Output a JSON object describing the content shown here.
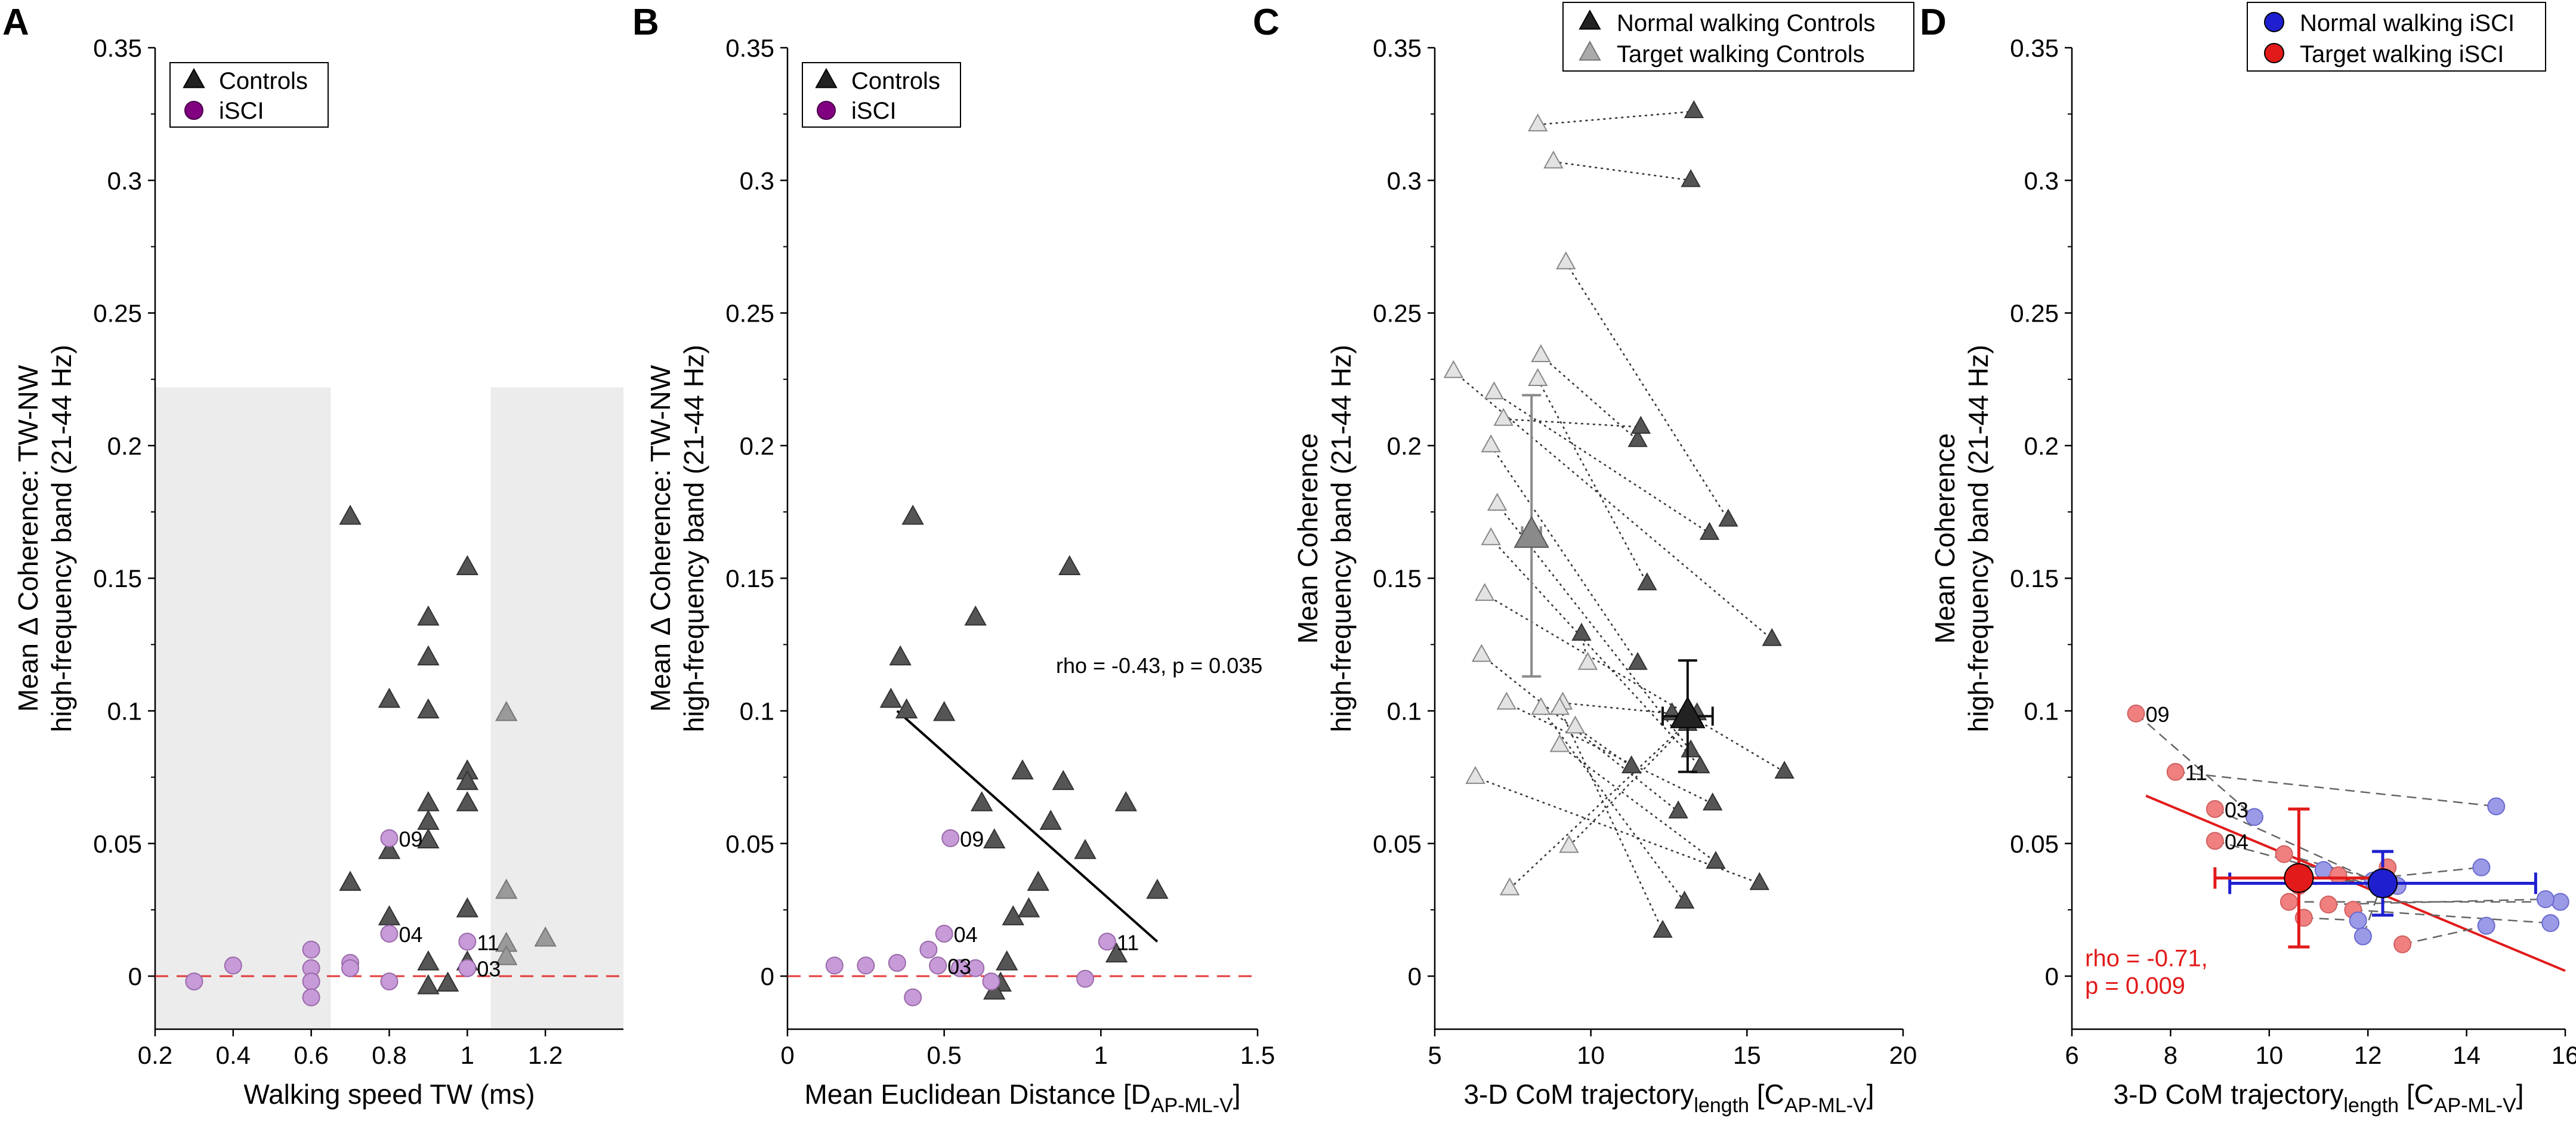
{
  "colors": {
    "dark_triangle": "#555555",
    "light_triangle": "#cfcfcf",
    "isci": "#c79ad8",
    "isci_stroke": "#9a6aaa",
    "isci_legend": "#800080",
    "blue": "#1f1fd0",
    "blue_point": "#9a9ae6",
    "red": "#e21a1a",
    "red_point": "#f08080",
    "shade": "#ececec"
  },
  "chart_data": [
    {
      "panel_label": "A",
      "type": "scatter",
      "xlabel": "Walking speed TW (ms)",
      "ylabel": [
        "Mean Δ Coherence: TW-NW",
        "high-frequency band (21-44 Hz)"
      ],
      "xlim": [
        0.2,
        1.4
      ],
      "ylim": [
        -0.02,
        0.35
      ],
      "xticks": [
        0.2,
        0.4,
        0.6,
        0.8,
        1,
        1.2
      ],
      "yticks": [
        0,
        0.05,
        0.1,
        0.15,
        0.2,
        0.25,
        0.3,
        0.35
      ],
      "legend": [
        "Controls",
        "iSCI"
      ],
      "shaded_regions": [
        {
          "x": [
            0.2,
            0.65
          ],
          "y": [
            -0.02,
            0.222
          ]
        },
        {
          "x": [
            1.06,
            1.4
          ],
          "y": [
            -0.02,
            0.222
          ]
        }
      ],
      "reference_line": 0,
      "controls": [
        {
          "x": 0.7,
          "y": 0.173
        },
        {
          "x": 0.7,
          "y": 0.035
        },
        {
          "x": 0.8,
          "y": 0.104
        },
        {
          "x": 0.8,
          "y": 0.047
        },
        {
          "x": 0.8,
          "y": 0.022
        },
        {
          "x": 0.9,
          "y": 0.135
        },
        {
          "x": 0.9,
          "y": 0.12
        },
        {
          "x": 0.9,
          "y": 0.1
        },
        {
          "x": 0.9,
          "y": 0.065
        },
        {
          "x": 0.9,
          "y": 0.058
        },
        {
          "x": 0.9,
          "y": 0.051
        },
        {
          "x": 0.9,
          "y": 0.005
        },
        {
          "x": 0.9,
          "y": -0.004
        },
        {
          "x": 0.95,
          "y": -0.003
        },
        {
          "x": 1.0,
          "y": 0.154
        },
        {
          "x": 1.0,
          "y": 0.077
        },
        {
          "x": 1.0,
          "y": 0.073
        },
        {
          "x": 1.0,
          "y": 0.065
        },
        {
          "x": 1.0,
          "y": 0.025
        },
        {
          "x": 1.0,
          "y": 0.005
        }
      ],
      "controls_light": [
        {
          "x": 1.1,
          "y": 0.099
        },
        {
          "x": 1.1,
          "y": 0.032
        },
        {
          "x": 1.1,
          "y": 0.012
        },
        {
          "x": 1.1,
          "y": 0.007
        },
        {
          "x": 1.2,
          "y": 0.014
        }
      ],
      "isci": [
        {
          "x": 0.3,
          "y": -0.002
        },
        {
          "x": 0.4,
          "y": 0.004
        },
        {
          "x": 0.6,
          "y": 0.01
        },
        {
          "x": 0.6,
          "y": 0.003
        },
        {
          "x": 0.6,
          "y": -0.002
        },
        {
          "x": 0.6,
          "y": -0.008
        },
        {
          "x": 0.7,
          "y": 0.005
        },
        {
          "x": 0.7,
          "y": 0.003
        },
        {
          "x": 0.8,
          "y": 0.052
        },
        {
          "x": 0.8,
          "y": 0.016
        },
        {
          "x": 0.8,
          "y": -0.002
        },
        {
          "x": 1.0,
          "y": 0.013
        },
        {
          "x": 1.0,
          "y": 0.003
        }
      ],
      "annotations": [
        {
          "text": "09",
          "x": 0.8,
          "y": 0.052
        },
        {
          "text": "04",
          "x": 0.8,
          "y": 0.016
        },
        {
          "text": "11",
          "x": 1.0,
          "y": 0.013
        },
        {
          "text": "03",
          "x": 1.0,
          "y": 0.003
        }
      ]
    },
    {
      "panel_label": "B",
      "type": "scatter",
      "xlabel": "Mean Euclidean Distance [D",
      "xlabel_sub": "AP-ML-V",
      "xlabel_end": "]",
      "ylabel": [
        "Mean Δ Coherence: TW-NW",
        "high-frequency band (21-44 Hz)"
      ],
      "xlim": [
        0,
        1.5
      ],
      "ylim": [
        -0.02,
        0.35
      ],
      "xticks": [
        0,
        0.5,
        1,
        1.5
      ],
      "yticks": [
        0,
        0.05,
        0.1,
        0.15,
        0.2,
        0.25,
        0.3,
        0.35
      ],
      "legend": [
        "Controls",
        "iSCI"
      ],
      "reference_line": 0,
      "regression": {
        "x": [
          0.35,
          1.18
        ],
        "y": [
          0.1,
          0.013
        ]
      },
      "stat_text": "rho = -0.43, p = 0.035",
      "controls": [
        {
          "x": 0.33,
          "y": 0.104
        },
        {
          "x": 0.36,
          "y": 0.12
        },
        {
          "x": 0.38,
          "y": 0.1
        },
        {
          "x": 0.4,
          "y": 0.173
        },
        {
          "x": 0.5,
          "y": 0.099
        },
        {
          "x": 0.6,
          "y": 0.135
        },
        {
          "x": 0.62,
          "y": 0.065
        },
        {
          "x": 0.66,
          "y": 0.051
        },
        {
          "x": 0.68,
          "y": -0.003
        },
        {
          "x": 0.7,
          "y": 0.005
        },
        {
          "x": 0.72,
          "y": 0.022
        },
        {
          "x": 0.75,
          "y": 0.077
        },
        {
          "x": 0.77,
          "y": 0.025
        },
        {
          "x": 0.8,
          "y": 0.035
        },
        {
          "x": 0.84,
          "y": 0.058
        },
        {
          "x": 0.88,
          "y": 0.073
        },
        {
          "x": 0.9,
          "y": 0.154
        },
        {
          "x": 0.95,
          "y": 0.047
        },
        {
          "x": 1.05,
          "y": 0.008
        },
        {
          "x": 1.08,
          "y": 0.065
        },
        {
          "x": 1.18,
          "y": 0.032
        },
        {
          "x": 0.66,
          "y": -0.006
        }
      ],
      "isci": [
        {
          "x": 0.15,
          "y": 0.004
        },
        {
          "x": 0.25,
          "y": 0.004
        },
        {
          "x": 0.35,
          "y": 0.005
        },
        {
          "x": 0.4,
          "y": -0.008
        },
        {
          "x": 0.45,
          "y": 0.01
        },
        {
          "x": 0.48,
          "y": 0.004
        },
        {
          "x": 0.5,
          "y": 0.016
        },
        {
          "x": 0.52,
          "y": 0.052
        },
        {
          "x": 0.55,
          "y": 0.003
        },
        {
          "x": 0.6,
          "y": 0.003
        },
        {
          "x": 0.65,
          "y": -0.002
        },
        {
          "x": 0.95,
          "y": -0.001
        },
        {
          "x": 1.02,
          "y": 0.013
        }
      ],
      "annotations": [
        {
          "text": "09",
          "x": 0.52,
          "y": 0.052
        },
        {
          "text": "04",
          "x": 0.5,
          "y": 0.016
        },
        {
          "text": "03",
          "x": 0.48,
          "y": 0.004
        },
        {
          "text": "11",
          "x": 1.02,
          "y": 0.013
        }
      ]
    },
    {
      "panel_label": "C",
      "type": "scatter",
      "xlabel": "3-D CoM trajectory",
      "xlabel_sub1": "length",
      "xlabel_mid": " [C",
      "xlabel_sub2": "AP-ML-V",
      "xlabel_end": "]",
      "ylabel": [
        "Mean Coherence",
        "high-frequency band (21-44 Hz)"
      ],
      "xlim": [
        5,
        20
      ],
      "ylim": [
        -0.02,
        0.35
      ],
      "xticks": [
        5,
        10,
        15,
        20
      ],
      "yticks": [
        0,
        0.05,
        0.1,
        0.15,
        0.2,
        0.25,
        0.3,
        0.35
      ],
      "legend": [
        "Normal walking Controls",
        "Target walking Controls"
      ],
      "pairs": [
        {
          "normal": [
            13.3,
            0.326
          ],
          "target": [
            8.3,
            0.321
          ]
        },
        {
          "normal": [
            13.2,
            0.3
          ],
          "target": [
            8.8,
            0.307
          ]
        },
        {
          "normal": [
            14.4,
            0.172
          ],
          "target": [
            9.2,
            0.269
          ]
        },
        {
          "normal": [
            11.5,
            0.202
          ],
          "target": [
            8.4,
            0.234
          ]
        },
        {
          "normal": [
            11.8,
            0.148
          ],
          "target": [
            8.3,
            0.225
          ]
        },
        {
          "normal": [
            15.8,
            0.127
          ],
          "target": [
            5.6,
            0.228
          ]
        },
        {
          "normal": [
            11.6,
            0.207
          ],
          "target": [
            7.2,
            0.21
          ]
        },
        {
          "normal": [
            13.8,
            0.167
          ],
          "target": [
            6.9,
            0.22
          ]
        },
        {
          "normal": [
            11.5,
            0.118
          ],
          "target": [
            6.8,
            0.2
          ]
        },
        {
          "normal": [
            13.2,
            0.085
          ],
          "target": [
            7.0,
            0.178
          ]
        },
        {
          "normal": [
            13.5,
            0.079
          ],
          "target": [
            6.8,
            0.165
          ]
        },
        {
          "normal": [
            16.2,
            0.077
          ],
          "target": [
            6.6,
            0.144
          ]
        },
        {
          "normal": [
            12.6,
            0.099
          ],
          "target": [
            9.1,
            0.103
          ]
        },
        {
          "normal": [
            13.9,
            0.065
          ],
          "target": [
            7.3,
            0.103
          ]
        },
        {
          "normal": [
            12.8,
            0.062
          ],
          "target": [
            6.5,
            0.121
          ]
        },
        {
          "normal": [
            11.3,
            0.079
          ],
          "target": [
            9.5,
            0.094
          ]
        },
        {
          "normal": [
            14.0,
            0.043
          ],
          "target": [
            9.0,
            0.087
          ]
        },
        {
          "normal": [
            13.0,
            0.028
          ],
          "target": [
            8.4,
            0.101
          ]
        },
        {
          "normal": [
            12.3,
            0.017
          ],
          "target": [
            9.0,
            0.101
          ]
        },
        {
          "normal": [
            15.4,
            0.035
          ],
          "target": [
            6.3,
            0.075
          ]
        },
        {
          "normal": [
            13.1,
            0.095
          ],
          "target": [
            9.3,
            0.049
          ]
        },
        {
          "normal": [
            13.4,
            0.099
          ],
          "target": [
            7.4,
            0.033
          ]
        },
        {
          "normal": [
            9.7,
            0.129
          ],
          "target": [
            9.9,
            0.118
          ]
        }
      ],
      "mean_normal": {
        "x": 13.1,
        "y": 0.098,
        "xerr": 0.8,
        "yerr": 0.021
      },
      "mean_target": {
        "x": 8.1,
        "y": 0.166,
        "xerr": 0.3,
        "yerr": 0.053
      }
    },
    {
      "panel_label": "D",
      "type": "scatter",
      "xlabel": "3-D CoM trajectory",
      "xlabel_sub1": "length",
      "xlabel_mid": " [C",
      "xlabel_sub2": "AP-ML-V",
      "xlabel_end": "]",
      "ylabel": [
        "Mean Coherence",
        "high-frequency band (21-44 Hz)"
      ],
      "xlim": [
        6,
        16
      ],
      "ylim": [
        -0.02,
        0.35
      ],
      "xticks": [
        6,
        8,
        10,
        12,
        14,
        16
      ],
      "yticks": [
        0,
        0.05,
        0.1,
        0.15,
        0.2,
        0.25,
        0.3,
        0.35
      ],
      "legend": [
        "Normal walking iSCI",
        "Target walking iSCI"
      ],
      "pairs": [
        {
          "target": [
            7.3,
            0.099
          ],
          "normal": [
            9.7,
            0.06
          ]
        },
        {
          "target": [
            8.1,
            0.077
          ],
          "normal": [
            14.6,
            0.064
          ]
        },
        {
          "target": [
            8.9,
            0.063
          ],
          "normal": [
            12.1,
            0.036
          ]
        },
        {
          "target": [
            8.9,
            0.051
          ],
          "normal": [
            11.1,
            0.04
          ]
        },
        {
          "target": [
            10.3,
            0.046
          ],
          "normal": [
            12.6,
            0.034
          ]
        },
        {
          "target": [
            10.6,
            0.034
          ],
          "normal": [
            14.3,
            0.041
          ]
        },
        {
          "target": [
            10.4,
            0.028
          ],
          "normal": [
            15.9,
            0.028
          ]
        },
        {
          "target": [
            11.2,
            0.027
          ],
          "normal": [
            15.6,
            0.029
          ]
        },
        {
          "target": [
            11.7,
            0.025
          ],
          "normal": [
            15.7,
            0.02
          ]
        },
        {
          "target": [
            10.7,
            0.022
          ],
          "normal": [
            11.8,
            0.021
          ]
        },
        {
          "target": [
            12.7,
            0.012
          ],
          "normal": [
            14.4,
            0.019
          ]
        },
        {
          "target": [
            11.4,
            0.038
          ],
          "normal": [
            12.3,
            0.033
          ]
        },
        {
          "target": [
            12.4,
            0.041
          ],
          "normal": [
            11.9,
            0.015
          ]
        }
      ],
      "annotations": [
        {
          "text": "09",
          "x": 7.3,
          "y": 0.099
        },
        {
          "text": "11",
          "x": 8.1,
          "y": 0.077
        },
        {
          "text": "03",
          "x": 8.9,
          "y": 0.063
        },
        {
          "text": "04",
          "x": 8.9,
          "y": 0.051
        }
      ],
      "regression": {
        "x": [
          7.5,
          16
        ],
        "y": [
          0.068,
          0.002
        ]
      },
      "stat_text": [
        "rho = -0.71,",
        "p = 0.009"
      ],
      "mean_normal": {
        "x": 12.3,
        "y": 0.035,
        "xerr": 3.1,
        "yerr": 0.012
      },
      "mean_target": {
        "x": 10.6,
        "y": 0.037,
        "xerr": 1.7,
        "yerr": 0.026
      }
    }
  ]
}
